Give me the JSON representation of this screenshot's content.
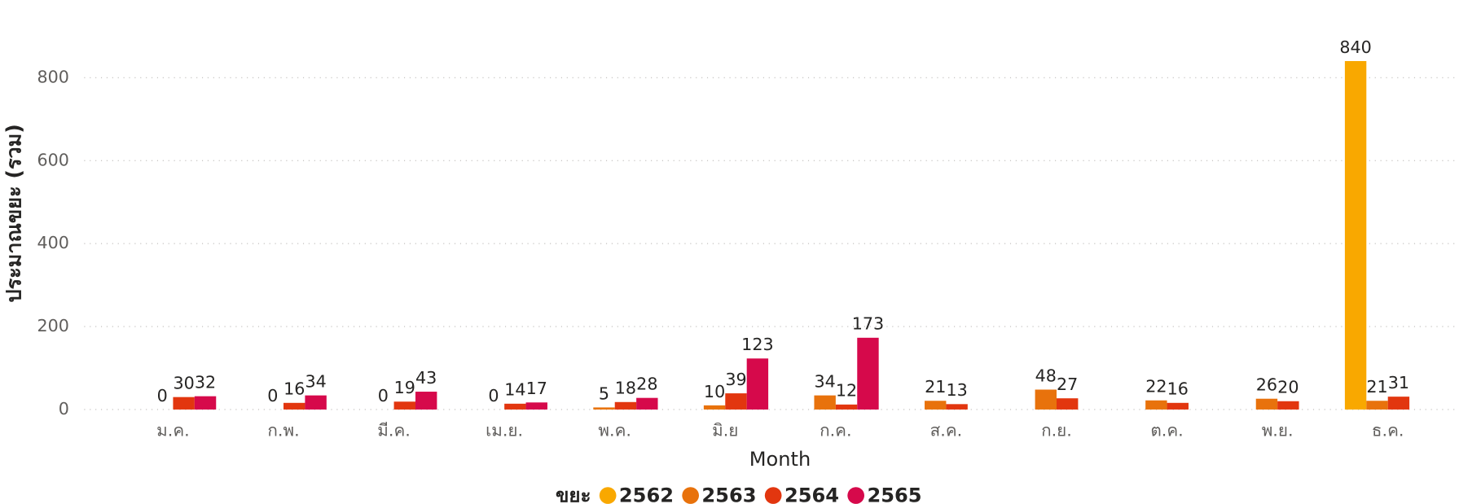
{
  "chart_data": {
    "type": "bar",
    "y_label": "ประมาณขยะ (รวม)",
    "x_label": "Month",
    "legend_title": "ขยะ",
    "categories": [
      "ม.ค.",
      "ก.พ.",
      "มี.ค.",
      "เม.ย.",
      "พ.ค.",
      "มิ.ย",
      "ก.ค.",
      "ส.ค.",
      "ก.ย.",
      "ต.ค.",
      "พ.ย.",
      "ธ.ค."
    ],
    "series": [
      {
        "name": "2562",
        "color": "#F9A800",
        "values": [
          null,
          null,
          null,
          null,
          null,
          null,
          null,
          null,
          null,
          null,
          null,
          840
        ]
      },
      {
        "name": "2563",
        "color": "#E8720C",
        "values": [
          0,
          0,
          0,
          0,
          5,
          10,
          34,
          21,
          48,
          22,
          26,
          21
        ]
      },
      {
        "name": "2564",
        "color": "#E2360F",
        "values": [
          30,
          16,
          19,
          14,
          18,
          39,
          12,
          13,
          27,
          16,
          20,
          31
        ]
      },
      {
        "name": "2565",
        "color": "#D6094B",
        "values": [
          32,
          34,
          43,
          17,
          28,
          123,
          173,
          null,
          null,
          null,
          null,
          null
        ]
      }
    ],
    "ylim": [
      0,
      900
    ],
    "yticks": [
      0,
      200,
      400,
      600,
      800
    ],
    "grid": true,
    "legend_position": "bottom"
  }
}
